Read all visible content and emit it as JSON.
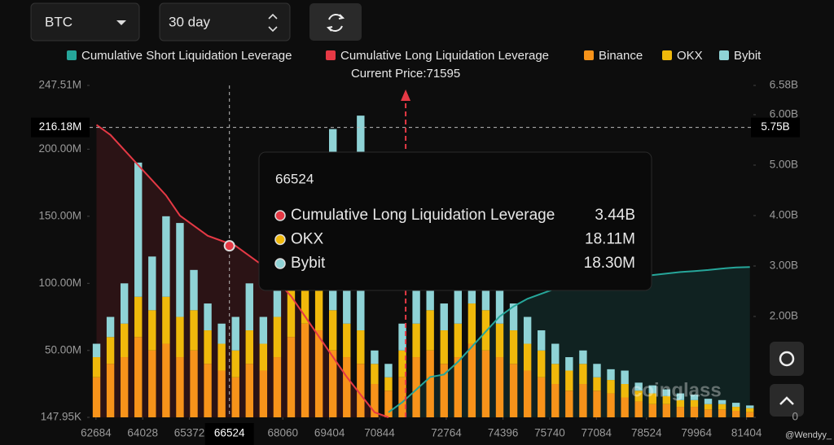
{
  "ui": {
    "coin": "BTC",
    "range": "30 day",
    "watermark": "coinglass",
    "credit": "@Wendyy_"
  },
  "chart_data": {
    "type": "bar",
    "annotation": "Current Price:71595",
    "current_price": 71595,
    "x": [
      62700,
      63100,
      63500,
      63900,
      64300,
      64700,
      65100,
      65500,
      65900,
      66300,
      66700,
      67100,
      67500,
      67900,
      68300,
      68700,
      69100,
      69500,
      69900,
      70300,
      70700,
      71100,
      71500,
      71900,
      72300,
      72700,
      73100,
      73500,
      73900,
      74300,
      74700,
      75100,
      75500,
      75900,
      76300,
      76700,
      77100,
      77500,
      77900,
      78300,
      78700,
      79100,
      79500,
      79900,
      80300,
      80700,
      81100,
      81500
    ],
    "xlim": [
      62500,
      81600
    ],
    "xticks": [
      62684,
      64028,
      65372,
      68060,
      69404,
      70844,
      72764,
      74396,
      75740,
      77084,
      78524,
      79964,
      81404
    ],
    "ylim": [
      0.14795,
      247.51
    ],
    "yticks": [
      {
        "value": 0.14795,
        "label": "147.95K"
      },
      {
        "value": 50,
        "label": "50.00M"
      },
      {
        "value": 100,
        "label": "100.00M"
      },
      {
        "value": 150,
        "label": "150.00M"
      },
      {
        "value": 200,
        "label": "200.00M"
      },
      {
        "value": 247.51,
        "label": "247.51M"
      }
    ],
    "y2lim": [
      0,
      6.58
    ],
    "y2ticks": [
      0,
      {
        "value": 2,
        "label": "2.00B"
      },
      {
        "value": 3,
        "label": "3.00B"
      },
      {
        "value": 4,
        "label": "4.00B"
      },
      {
        "value": 5,
        "label": "5.00B"
      },
      {
        "value": 6,
        "label": "6.00B"
      },
      {
        "value": 6.58,
        "label": "6.58B"
      }
    ],
    "grid": false,
    "series": [
      {
        "name": "Cumulative Short Liquidation Leverage",
        "type": "line",
        "axis": "y2",
        "color": "#26a69a",
        "values": [
          null,
          null,
          null,
          null,
          null,
          null,
          null,
          null,
          null,
          null,
          null,
          null,
          null,
          null,
          null,
          null,
          null,
          null,
          null,
          null,
          null,
          0.1,
          0.3,
          0.55,
          0.8,
          0.85,
          1.1,
          1.4,
          1.7,
          2.0,
          2.2,
          2.35,
          2.45,
          2.55,
          2.6,
          2.65,
          2.7,
          2.72,
          2.75,
          2.78,
          2.82,
          2.85,
          2.88,
          2.9,
          2.92,
          2.95,
          2.97,
          2.98
        ]
      },
      {
        "name": "Cumulative Long Liquidation Leverage",
        "type": "line",
        "axis": "y2",
        "color": "#e53945",
        "values": [
          5.8,
          5.6,
          5.3,
          5.0,
          4.7,
          4.4,
          4.0,
          3.8,
          3.6,
          3.5,
          3.4,
          3.2,
          3.0,
          2.7,
          2.4,
          2.0,
          1.6,
          1.2,
          0.8,
          0.45,
          0.1,
          0,
          null,
          null,
          null,
          null,
          null,
          null,
          null,
          null,
          null,
          null,
          null,
          null,
          null,
          null,
          null,
          null,
          null,
          null,
          null,
          null,
          null,
          null,
          null,
          null,
          null,
          null
        ]
      },
      {
        "name": "Binance",
        "type": "bar",
        "color": "#f7931a",
        "values": [
          30,
          40,
          45,
          60,
          50,
          55,
          45,
          50,
          40,
          35,
          30,
          40,
          35,
          45,
          60,
          70,
          65,
          50,
          45,
          40,
          25,
          20,
          30,
          45,
          50,
          40,
          45,
          55,
          50,
          45,
          40,
          35,
          30,
          25,
          20,
          25,
          20,
          18,
          15,
          12,
          10,
          10,
          8,
          8,
          6,
          6,
          5,
          4
        ]
      },
      {
        "name": "OKX",
        "type": "bar",
        "color": "#f0b90b",
        "values": [
          15,
          20,
          25,
          30,
          30,
          35,
          30,
          30,
          25,
          20,
          20,
          25,
          20,
          30,
          35,
          40,
          40,
          30,
          25,
          25,
          15,
          10,
          20,
          25,
          30,
          25,
          25,
          30,
          30,
          25,
          25,
          20,
          20,
          15,
          15,
          15,
          10,
          10,
          10,
          8,
          8,
          6,
          5,
          5,
          4,
          4,
          3,
          3
        ]
      },
      {
        "name": "Bybit",
        "type": "bar",
        "color": "#8fd3d6",
        "values": [
          10,
          15,
          30,
          100,
          40,
          60,
          70,
          30,
          20,
          15,
          25,
          35,
          20,
          25,
          35,
          30,
          40,
          135,
          30,
          160,
          10,
          10,
          20,
          25,
          30,
          20,
          30,
          30,
          25,
          50,
          20,
          20,
          15,
          15,
          10,
          10,
          10,
          8,
          10,
          6,
          6,
          5,
          5,
          4,
          4,
          3,
          3,
          2
        ]
      }
    ],
    "crosshair": {
      "x": 66524,
      "y": {
        "value": 216.18,
        "label": "216.18M"
      },
      "y2": {
        "value": 5.75,
        "label": "5.75B"
      }
    },
    "tooltip": {
      "title": "66524",
      "rows": [
        {
          "name": "Cumulative Long Liquidation Leverage",
          "color": "#e53945",
          "value": "3.44B"
        },
        {
          "name": "OKX",
          "color": "#f0b90b",
          "value": "18.11M"
        },
        {
          "name": "Bybit",
          "color": "#8fd3d6",
          "value": "18.30M"
        }
      ]
    }
  }
}
